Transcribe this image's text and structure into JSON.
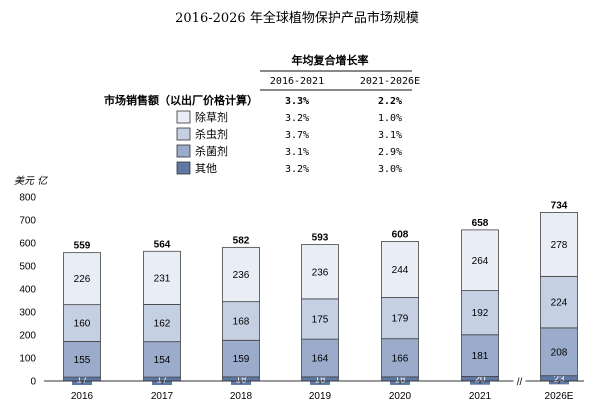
{
  "chart_data": {
    "type": "bar",
    "stacked": true,
    "title": "2016-2026 年全球植物保护产品市场规模",
    "ylabel": "美元 亿",
    "ylim": [
      0,
      800
    ],
    "yticks": [
      0,
      100,
      200,
      300,
      400,
      500,
      600,
      700,
      800
    ],
    "categories": [
      "2016",
      "2017",
      "2018",
      "2019",
      "2020",
      "2021",
      "2026E"
    ],
    "series": [
      {
        "name": "其他",
        "values": [
          17,
          17,
          18,
          18,
          18,
          20,
          23
        ],
        "color": "#5f78a3"
      },
      {
        "name": "杀菌剂",
        "values": [
          155,
          154,
          159,
          164,
          166,
          181,
          208
        ],
        "color": "#9aabcb"
      },
      {
        "name": "杀虫剂",
        "values": [
          160,
          162,
          168,
          175,
          179,
          192,
          224
        ],
        "color": "#c6d0e3"
      },
      {
        "name": "除草剂",
        "values": [
          226,
          231,
          236,
          236,
          244,
          264,
          278
        ],
        "color": "#e9edf5"
      }
    ],
    "totals": [
      559,
      564,
      582,
      593,
      608,
      658,
      734
    ],
    "axis_break_before": "2026E",
    "axis_break_symbol": "//",
    "growth_table": {
      "heading": "年均复合增长率",
      "columns": [
        "2016-2021",
        "2021-2026E"
      ],
      "rows": [
        {
          "label": "市场销售额（以出厂价格计算）",
          "values": [
            "3.3%",
            "2.2%"
          ],
          "bold": true
        },
        {
          "label": "除草剂",
          "values": [
            "3.2%",
            "1.0%"
          ],
          "color": "#e9edf5"
        },
        {
          "label": "杀虫剂",
          "values": [
            "3.7%",
            "3.1%"
          ],
          "color": "#c6d0e3"
        },
        {
          "label": "杀菌剂",
          "values": [
            "3.1%",
            "2.9%"
          ],
          "color": "#9aabcb"
        },
        {
          "label": "其他",
          "values": [
            "3.2%",
            "3.0%"
          ],
          "color": "#5f78a3"
        }
      ]
    }
  }
}
